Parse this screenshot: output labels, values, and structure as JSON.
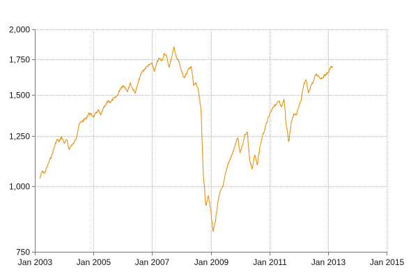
{
  "chart_data": {
    "type": "line",
    "title": "",
    "xlabel": "",
    "ylabel": "",
    "y_scale": "log",
    "ylim": [
      750,
      2000
    ],
    "xlim": [
      "2003-01",
      "2015-01"
    ],
    "grid": true,
    "y_ticks": [
      {
        "value": 750,
        "label": "750"
      },
      {
        "value": 1000,
        "label": "1,000"
      },
      {
        "value": 1250,
        "label": "1,250"
      },
      {
        "value": 1500,
        "label": "1,500"
      },
      {
        "value": 1750,
        "label": "1,750"
      },
      {
        "value": 2000,
        "label": "2,000"
      }
    ],
    "x_ticks": [
      {
        "value": "2003-01",
        "label": "Jan 2003"
      },
      {
        "value": "2005-01",
        "label": "Jan 2005"
      },
      {
        "value": "2007-01",
        "label": "Jan 2007"
      },
      {
        "value": "2009-01",
        "label": "Jan 2009"
      },
      {
        "value": "2011-01",
        "label": "Jan 2011"
      },
      {
        "value": "2013-01",
        "label": "Jan 2013"
      },
      {
        "value": "2015-01",
        "label": "Jan 2015"
      }
    ],
    "colors": {
      "line": "#e8900c",
      "grid": "#b5b5b5",
      "axis": "#777777"
    },
    "series": [
      {
        "x": [
          "2003-03",
          "2003-04",
          "2003-05",
          "2003-06",
          "2003-07",
          "2003-08",
          "2003-09",
          "2003-10",
          "2003-11",
          "2003-12",
          "2004-01",
          "2004-02",
          "2004-03",
          "2004-04",
          "2004-05",
          "2004-06",
          "2004-07",
          "2004-08",
          "2004-09",
          "2004-10",
          "2004-11",
          "2004-12",
          "2005-01",
          "2005-02",
          "2005-03",
          "2005-04",
          "2005-05",
          "2005-06",
          "2005-07",
          "2005-08",
          "2005-09",
          "2005-10",
          "2005-11",
          "2005-12",
          "2006-01",
          "2006-02",
          "2006-03",
          "2006-04",
          "2006-05",
          "2006-06",
          "2006-07",
          "2006-08",
          "2006-09",
          "2006-10",
          "2006-11",
          "2006-12",
          "2007-01",
          "2007-02",
          "2007-03",
          "2007-04",
          "2007-05",
          "2007-06",
          "2007-07",
          "2007-08",
          "2007-09",
          "2007-10",
          "2007-11",
          "2007-12",
          "2008-01",
          "2008-02",
          "2008-03",
          "2008-04",
          "2008-05",
          "2008-06",
          "2008-07",
          "2008-08",
          "2008-09",
          "2008-10",
          "2008-11",
          "2008-12",
          "2009-01",
          "2009-02",
          "2009-03",
          "2009-04",
          "2009-05",
          "2009-06",
          "2009-07",
          "2009-08",
          "2009-09",
          "2009-10",
          "2009-11",
          "2009-12",
          "2010-01",
          "2010-02",
          "2010-03",
          "2010-04",
          "2010-05",
          "2010-06",
          "2010-07",
          "2010-08",
          "2010-09",
          "2010-10",
          "2010-11",
          "2010-12",
          "2011-01",
          "2011-02",
          "2011-03",
          "2011-04",
          "2011-05",
          "2011-06",
          "2011-07",
          "2011-08",
          "2011-09",
          "2011-10",
          "2011-11",
          "2011-12",
          "2012-01",
          "2012-02",
          "2012-03",
          "2012-04",
          "2012-05",
          "2012-06",
          "2012-07",
          "2012-08",
          "2012-09",
          "2012-10",
          "2012-11",
          "2012-12",
          "2013-01",
          "2013-02",
          "2013-03"
        ],
        "y": [
          1035,
          1070,
          1060,
          1090,
          1120,
          1150,
          1190,
          1230,
          1220,
          1245,
          1210,
          1230,
          1180,
          1200,
          1210,
          1240,
          1310,
          1330,
          1340,
          1350,
          1380,
          1375,
          1360,
          1380,
          1400,
          1370,
          1410,
          1430,
          1460,
          1450,
          1470,
          1480,
          1500,
          1540,
          1560,
          1550,
          1520,
          1580,
          1540,
          1510,
          1560,
          1620,
          1660,
          1680,
          1700,
          1710,
          1720,
          1660,
          1730,
          1760,
          1740,
          1800,
          1770,
          1690,
          1770,
          1850,
          1760,
          1740,
          1660,
          1620,
          1640,
          1680,
          1700,
          1560,
          1580,
          1520,
          1400,
          1050,
          920,
          960,
          900,
          820,
          860,
          940,
          980,
          1000,
          1060,
          1100,
          1130,
          1160,
          1200,
          1240,
          1160,
          1200,
          1260,
          1270,
          1120,
          1080,
          1150,
          1100,
          1180,
          1240,
          1280,
          1330,
          1370,
          1400,
          1430,
          1440,
          1460,
          1420,
          1470,
          1300,
          1220,
          1330,
          1380,
          1370,
          1420,
          1460,
          1560,
          1600,
          1510,
          1560,
          1590,
          1640,
          1630,
          1610,
          1620,
          1640,
          1650,
          1690,
          1700
        ],
        "first_label": "",
        "last_label": ""
      }
    ]
  }
}
